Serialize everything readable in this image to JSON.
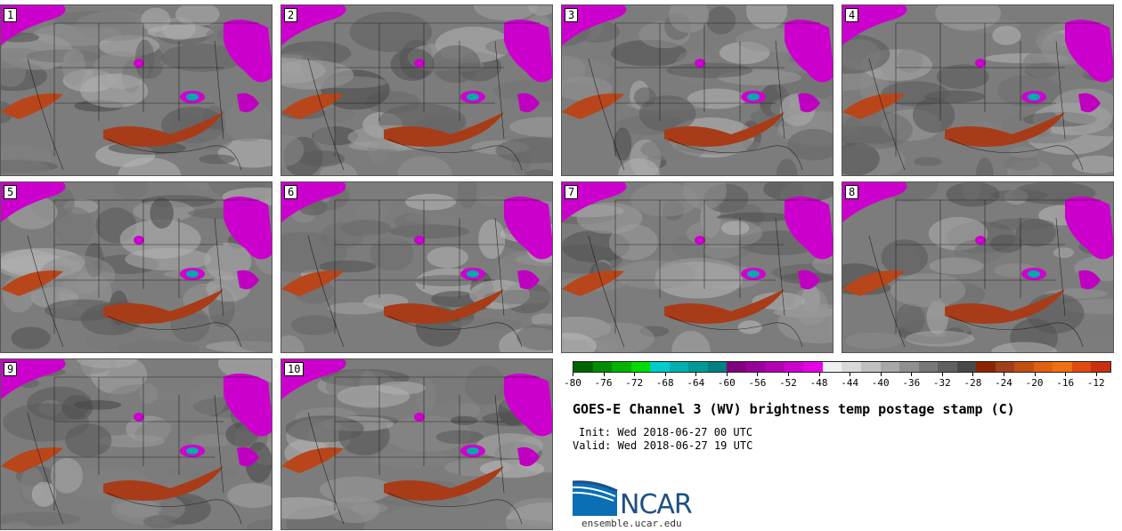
{
  "panels": [
    {
      "label": "1"
    },
    {
      "label": "2"
    },
    {
      "label": "3"
    },
    {
      "label": "4"
    },
    {
      "label": "5"
    },
    {
      "label": "6"
    },
    {
      "label": "7"
    },
    {
      "label": "8"
    },
    {
      "label": "9"
    },
    {
      "label": "10"
    }
  ],
  "colorbar": {
    "colors": [
      "#006400",
      "#008c00",
      "#00b400",
      "#00dc00",
      "#00cccc",
      "#00b0b0",
      "#009999",
      "#008080",
      "#800080",
      "#990099",
      "#b300b3",
      "#cc00cc",
      "#e600e6",
      "#f0f0f0",
      "#d9d9d9",
      "#c0c0c0",
      "#a8a8a8",
      "#909090",
      "#787878",
      "#606060",
      "#484848",
      "#8b2500",
      "#a0401a",
      "#c05010",
      "#e06010",
      "#f07010",
      "#e04a10",
      "#c83010"
    ],
    "tick_labels": [
      "-80",
      "-76",
      "-72",
      "-68",
      "-64",
      "-60",
      "-56",
      "-52",
      "-48",
      "-44",
      "-40",
      "-36",
      "-32",
      "-28",
      "-24",
      "-20",
      "-16",
      "-12"
    ],
    "min": -80,
    "max": -10
  },
  "title": "GOES-E Channel 3 (WV) brightness temp postage stamp (C)",
  "init": "Init: Wed 2018-06-27 00 UTC",
  "valid": "Valid: Wed 2018-06-27 19 UTC",
  "logo": {
    "text": "NCAR",
    "url": "ensemble.ucar.edu"
  }
}
